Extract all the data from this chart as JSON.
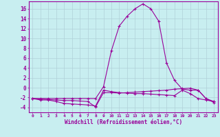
{
  "title": "",
  "xlabel": "Windchill (Refroidissement éolien,°C)",
  "ylabel": "",
  "background_color": "#c8eef0",
  "line_color": "#990099",
  "grid_color": "#b0d0d8",
  "x_values": [
    0,
    1,
    2,
    3,
    4,
    5,
    6,
    7,
    8,
    9,
    10,
    11,
    12,
    13,
    14,
    15,
    16,
    17,
    18,
    19,
    20,
    21,
    22,
    23
  ],
  "series": {
    "line1": [
      -2.2,
      -2.5,
      -2.5,
      -2.8,
      -3.2,
      -3.3,
      -3.4,
      -3.5,
      -3.7,
      -0.5,
      -0.8,
      -1.0,
      -1.1,
      -1.2,
      -1.2,
      -1.3,
      -1.4,
      -1.5,
      -1.6,
      -0.5,
      -1.2,
      -2.2,
      -2.5,
      -2.8
    ],
    "line2": [
      -2.2,
      -2.3,
      -2.4,
      -2.5,
      -2.6,
      -2.6,
      -2.7,
      -2.8,
      -3.9,
      -1.0,
      -1.0,
      -1.1,
      -1.0,
      -0.9,
      -0.8,
      -0.7,
      -0.6,
      -0.5,
      -0.3,
      -0.2,
      -0.1,
      -0.5,
      -2.2,
      -2.8
    ],
    "line3": [
      -2.2,
      -2.2,
      -2.2,
      -2.2,
      -2.2,
      -2.2,
      -2.2,
      -2.2,
      -2.2,
      0.2,
      7.5,
      12.5,
      14.5,
      16.0,
      17.0,
      16.0,
      13.5,
      5.0,
      1.5,
      -0.3,
      -0.5,
      -0.5,
      -2.2,
      -3.0
    ]
  },
  "ylim": [
    -5,
    17.5
  ],
  "yticks": [
    -4,
    -2,
    0,
    2,
    4,
    6,
    8,
    10,
    12,
    14,
    16
  ],
  "xlim": [
    -0.5,
    23.5
  ]
}
